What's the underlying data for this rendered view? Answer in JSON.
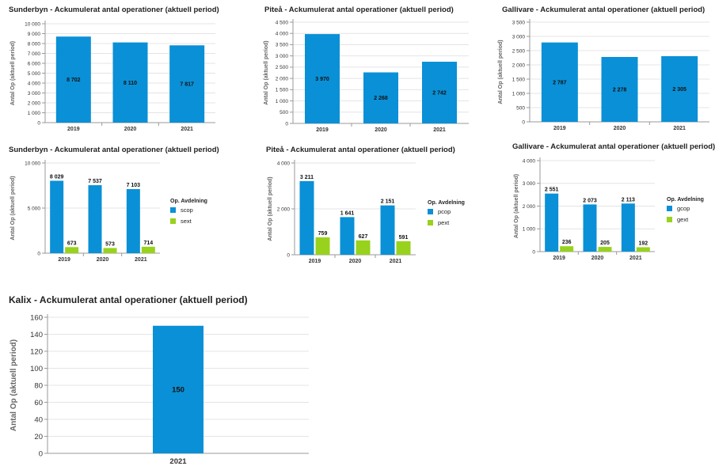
{
  "palette": {
    "primary": "#0a90d6",
    "secondary": "#98d21c"
  },
  "charts": [
    {
      "id": "sunderbyn-total",
      "title": "Sunderbyn - Ackumulerat antal operationer (aktuell period)",
      "ylabel": "Antal Op (aktuell period)",
      "categories": [
        "2019",
        "2020",
        "2021"
      ],
      "yticks": [
        "0",
        "1 000",
        "2 000",
        "3 000",
        "4 000",
        "5 000",
        "6 000",
        "7 000",
        "8 000",
        "9 000",
        "10 000"
      ],
      "ylim": [
        0,
        10000
      ],
      "series": [
        {
          "values": [
            8702,
            8110,
            7817
          ],
          "labels": [
            "8 702",
            "8 110",
            "7 817"
          ]
        }
      ]
    },
    {
      "id": "pitea-total",
      "title": "Piteå - Ackumulerat antal operationer (aktuell period)",
      "ylabel": "Antal Op (aktuell period)",
      "categories": [
        "2019",
        "2020",
        "2021"
      ],
      "yticks": [
        "0",
        "500",
        "1 000",
        "1 500",
        "2 000",
        "2 500",
        "3 000",
        "3 500",
        "4 000",
        "4 500"
      ],
      "ylim": [
        0,
        4500
      ],
      "series": [
        {
          "values": [
            3970,
            2268,
            2742
          ],
          "labels": [
            "3 970",
            "2 268",
            "2 742"
          ]
        }
      ]
    },
    {
      "id": "gallivare-total",
      "title": "Gallivare - Ackumulerat antal operationer (aktuell period)",
      "ylabel": "Antal Op (aktuell period)",
      "categories": [
        "2019",
        "2020",
        "2021"
      ],
      "yticks": [
        "0",
        "500",
        "1 000",
        "1 500",
        "2 000",
        "2 500",
        "3 000",
        "3 500"
      ],
      "ylim": [
        0,
        3500
      ],
      "series": [
        {
          "values": [
            2787,
            2278,
            2305
          ],
          "labels": [
            "2 787",
            "2 278",
            "2 305"
          ]
        }
      ]
    },
    {
      "id": "sunderbyn-dept",
      "title": "Sunderbyn - Ackumulerat antal operationer (aktuell period)",
      "ylabel": "Antal Op (aktuell period)",
      "categories": [
        "2019",
        "2020",
        "2021"
      ],
      "yticks": [
        "0",
        "5 000",
        "10 000"
      ],
      "ylim": [
        0,
        10000
      ],
      "legend_title": "Op. Avdelning",
      "series": [
        {
          "name": "scop",
          "values": [
            8029,
            7537,
            7103
          ],
          "labels": [
            "8 029",
            "7 537",
            "7 103"
          ]
        },
        {
          "name": "sext",
          "values": [
            673,
            573,
            714
          ],
          "labels": [
            "673",
            "573",
            "714"
          ]
        }
      ]
    },
    {
      "id": "pitea-dept",
      "title": "Piteå - Ackumulerat antal operationer (aktuell period)",
      "ylabel": "Antal Op (aktuell period)",
      "categories": [
        "2019",
        "2020",
        "2021"
      ],
      "yticks": [
        "0",
        "2 000",
        "4 000"
      ],
      "ylim": [
        0,
        4000
      ],
      "legend_title": "Op. Avdelning",
      "series": [
        {
          "name": "pcop",
          "values": [
            3211,
            1641,
            2151
          ],
          "labels": [
            "3 211",
            "1 641",
            "2 151"
          ]
        },
        {
          "name": "pext",
          "values": [
            759,
            627,
            591
          ],
          "labels": [
            "759",
            "627",
            "591"
          ]
        }
      ]
    },
    {
      "id": "gallivare-dept",
      "title": "Gallivare - Ackumulerat antal operationer (aktuell period)",
      "ylabel": "Antal Op (aktuell period)",
      "categories": [
        "2019",
        "2020",
        "2021"
      ],
      "yticks": [
        "0",
        "1 000",
        "2 000",
        "3 000",
        "4 000"
      ],
      "ylim": [
        0,
        4000
      ],
      "legend_title": "Op. Avdelning",
      "series": [
        {
          "name": "gcop",
          "values": [
            2551,
            2073,
            2113
          ],
          "labels": [
            "2 551",
            "2 073",
            "2 113"
          ]
        },
        {
          "name": "gext",
          "values": [
            236,
            205,
            192
          ],
          "labels": [
            "236",
            "205",
            "192"
          ]
        }
      ]
    },
    {
      "id": "kalix-total",
      "title": "Kalix - Ackumulerat antal operationer (aktuell period)",
      "ylabel": "Antal Op (aktuell period)",
      "categories": [
        "2021"
      ],
      "yticks": [
        "0",
        "20",
        "40",
        "60",
        "80",
        "100",
        "120",
        "140",
        "160"
      ],
      "ylim": [
        0,
        160
      ],
      "series": [
        {
          "values": [
            150
          ],
          "labels": [
            "150"
          ]
        }
      ]
    }
  ],
  "chart_data": [
    {
      "type": "bar",
      "title": "Sunderbyn - Ackumulerat antal operationer (aktuell period)",
      "ylabel": "Antal Op (aktuell period)",
      "categories": [
        "2019",
        "2020",
        "2021"
      ],
      "values": [
        8702,
        8110,
        7817
      ],
      "ylim": [
        0,
        10000
      ]
    },
    {
      "type": "bar",
      "title": "Piteå - Ackumulerat antal operationer (aktuell period)",
      "ylabel": "Antal Op (aktuell period)",
      "categories": [
        "2019",
        "2020",
        "2021"
      ],
      "values": [
        3970,
        2268,
        2742
      ],
      "ylim": [
        0,
        4500
      ]
    },
    {
      "type": "bar",
      "title": "Gallivare - Ackumulerat antal operationer (aktuell period)",
      "ylabel": "Antal Op (aktuell period)",
      "categories": [
        "2019",
        "2020",
        "2021"
      ],
      "values": [
        2787,
        2278,
        2305
      ],
      "ylim": [
        0,
        3500
      ]
    },
    {
      "type": "bar",
      "title": "Sunderbyn - Ackumulerat antal operationer (aktuell period)",
      "ylabel": "Antal Op (aktuell period)",
      "categories": [
        "2019",
        "2020",
        "2021"
      ],
      "legend_title": "Op. Avdelning",
      "legend": "right",
      "series": [
        {
          "name": "scop",
          "values": [
            8029,
            7537,
            7103
          ]
        },
        {
          "name": "sext",
          "values": [
            673,
            573,
            714
          ]
        }
      ],
      "ylim": [
        0,
        10000
      ]
    },
    {
      "type": "bar",
      "title": "Piteå - Ackumulerat antal operationer (aktuell period)",
      "ylabel": "Antal Op (aktuell period)",
      "categories": [
        "2019",
        "2020",
        "2021"
      ],
      "legend_title": "Op. Avdelning",
      "legend": "right",
      "series": [
        {
          "name": "pcop",
          "values": [
            3211,
            1641,
            2151
          ]
        },
        {
          "name": "pext",
          "values": [
            759,
            627,
            591
          ]
        }
      ],
      "ylim": [
        0,
        4000
      ]
    },
    {
      "type": "bar",
      "title": "Gallivare - Ackumulerat antal operationer (aktuell period)",
      "ylabel": "Antal Op (aktuell period)",
      "categories": [
        "2019",
        "2020",
        "2021"
      ],
      "legend_title": "Op. Avdelning",
      "legend": "right",
      "series": [
        {
          "name": "gcop",
          "values": [
            2551,
            2073,
            2113
          ]
        },
        {
          "name": "gext",
          "values": [
            236,
            205,
            192
          ]
        }
      ],
      "ylim": [
        0,
        4000
      ]
    },
    {
      "type": "bar",
      "title": "Kalix - Ackumulerat antal operationer (aktuell period)",
      "ylabel": "Antal Op (aktuell period)",
      "categories": [
        "2021"
      ],
      "values": [
        150
      ],
      "ylim": [
        0,
        160
      ]
    }
  ]
}
